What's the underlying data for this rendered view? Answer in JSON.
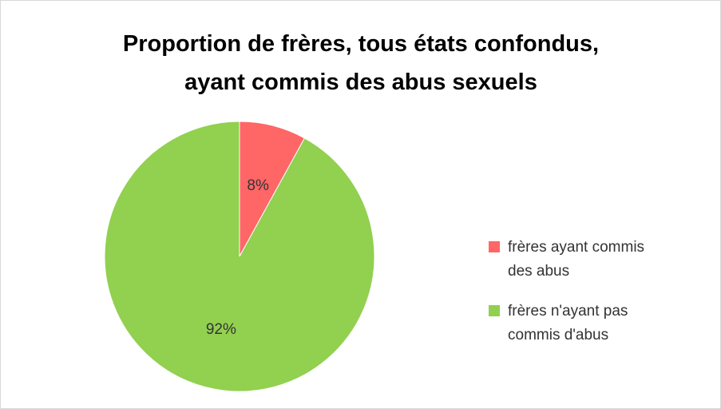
{
  "chart_data": {
    "type": "pie",
    "title": [
      "Proportion de frères, tous états confondus,",
      "ayant commis des abus sexuels"
    ],
    "categories": [
      "frères ayant commis des abus",
      "frères n'ayant pas commis d'abus"
    ],
    "values": [
      8,
      92
    ],
    "value_labels": [
      "8%",
      "92%"
    ],
    "colors": [
      "#ff6666",
      "#92d050"
    ],
    "legend": "right"
  }
}
